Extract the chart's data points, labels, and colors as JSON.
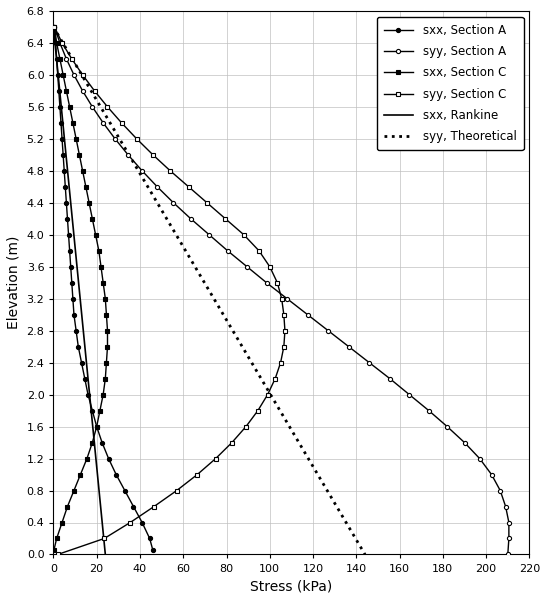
{
  "title": "",
  "xlabel": "Stress (kPa)",
  "ylabel": "Elevation (m)",
  "xlim": [
    0,
    220
  ],
  "ylim": [
    0,
    6.8
  ],
  "xticks": [
    0,
    20,
    40,
    60,
    80,
    100,
    120,
    140,
    160,
    180,
    200,
    220
  ],
  "yticks": [
    0,
    0.4,
    0.8,
    1.2,
    1.6,
    2.0,
    2.4,
    2.8,
    3.2,
    3.6,
    4.0,
    4.4,
    4.8,
    5.2,
    5.6,
    6.0,
    6.4,
    6.8
  ],
  "sxx_rankine": {
    "x": [
      0,
      24
    ],
    "y": [
      6.6,
      0
    ],
    "color": "#000000",
    "linestyle": "-",
    "linewidth": 1.2,
    "label": "sxx, Rankine"
  },
  "syy_theoretical": {
    "x": [
      0,
      144
    ],
    "y": [
      6.6,
      0
    ],
    "color": "#000000",
    "linestyle": ":",
    "linewidth": 2.0,
    "label": "syy, Theoretical"
  },
  "sxx_secA": {
    "elevation": [
      6.6,
      6.4,
      6.2,
      6.0,
      5.8,
      5.6,
      5.4,
      5.2,
      5.0,
      4.8,
      4.6,
      4.4,
      4.2,
      4.0,
      3.8,
      3.6,
      3.4,
      3.2,
      3.0,
      2.8,
      2.6,
      2.4,
      2.2,
      2.0,
      1.8,
      1.6,
      1.4,
      1.2,
      1.0,
      0.8,
      0.6,
      0.4,
      0.2,
      0.05
    ],
    "stress": [
      0.5,
      1.0,
      1.5,
      2.0,
      2.5,
      3.0,
      3.5,
      4.0,
      4.5,
      5.0,
      5.5,
      6.0,
      6.5,
      7.0,
      7.5,
      8.0,
      8.5,
      9.0,
      9.5,
      10.5,
      11.5,
      13.0,
      14.5,
      16.0,
      18.0,
      20.0,
      22.5,
      25.5,
      29.0,
      33.0,
      37.0,
      41.0,
      44.5,
      46.0
    ],
    "color": "#000000",
    "linestyle": "-",
    "linewidth": 1.0,
    "marker": "o",
    "markersize": 3,
    "label": "sxx, Section A"
  },
  "syy_secA": {
    "elevation": [
      6.6,
      6.4,
      6.2,
      6.0,
      5.8,
      5.6,
      5.4,
      5.2,
      5.0,
      4.8,
      4.6,
      4.4,
      4.2,
      4.0,
      3.8,
      3.6,
      3.4,
      3.2,
      3.0,
      2.8,
      2.6,
      2.4,
      2.2,
      2.0,
      1.8,
      1.6,
      1.4,
      1.2,
      1.0,
      0.8,
      0.6,
      0.4,
      0.2,
      0.0
    ],
    "stress": [
      0.5,
      3.0,
      6.0,
      9.5,
      13.5,
      18.0,
      23.0,
      28.5,
      34.5,
      41.0,
      48.0,
      55.5,
      63.5,
      72.0,
      80.5,
      89.5,
      98.5,
      108.0,
      117.5,
      127.0,
      136.5,
      146.0,
      155.5,
      164.5,
      173.5,
      182.0,
      190.0,
      197.0,
      202.5,
      206.5,
      209.0,
      210.5,
      210.5,
      210.0
    ],
    "color": "#000000",
    "linestyle": "-",
    "linewidth": 1.0,
    "marker": "o",
    "markersize": 3,
    "label": "syy, Section A"
  },
  "sxx_secC": {
    "elevation": [
      6.6,
      6.4,
      6.2,
      6.0,
      5.8,
      5.6,
      5.4,
      5.2,
      5.0,
      4.8,
      4.6,
      4.4,
      4.2,
      4.0,
      3.8,
      3.6,
      3.4,
      3.2,
      3.0,
      2.8,
      2.6,
      2.4,
      2.2,
      2.0,
      1.8,
      1.6,
      1.4,
      1.2,
      1.0,
      0.8,
      0.6,
      0.4,
      0.2,
      0.05
    ],
    "stress": [
      0.5,
      1.5,
      3.0,
      4.5,
      6.0,
      7.5,
      9.0,
      10.5,
      12.0,
      13.5,
      15.0,
      16.5,
      18.0,
      19.5,
      21.0,
      22.0,
      23.0,
      24.0,
      24.5,
      25.0,
      25.0,
      24.5,
      24.0,
      23.0,
      21.5,
      20.0,
      18.0,
      15.5,
      12.5,
      9.5,
      6.5,
      4.0,
      1.5,
      0.2
    ],
    "color": "#000000",
    "linestyle": "-",
    "linewidth": 1.0,
    "marker": "s",
    "markersize": 3,
    "label": "sxx, Section C"
  },
  "syy_secC": {
    "elevation": [
      6.6,
      6.4,
      6.2,
      6.0,
      5.8,
      5.6,
      5.4,
      5.2,
      5.0,
      4.8,
      4.6,
      4.4,
      4.2,
      4.0,
      3.8,
      3.6,
      3.4,
      3.2,
      3.0,
      2.8,
      2.6,
      2.4,
      2.2,
      2.0,
      1.8,
      1.6,
      1.4,
      1.2,
      1.0,
      0.8,
      0.6,
      0.4,
      0.2,
      0.0
    ],
    "stress": [
      0.5,
      4.0,
      8.5,
      13.5,
      19.0,
      25.0,
      31.5,
      38.5,
      46.0,
      54.0,
      62.5,
      71.0,
      79.5,
      88.0,
      95.0,
      100.0,
      103.5,
      105.5,
      106.5,
      107.0,
      106.5,
      105.0,
      102.5,
      99.0,
      94.5,
      89.0,
      82.5,
      75.0,
      66.5,
      57.0,
      46.5,
      35.5,
      23.5,
      2.0
    ],
    "color": "#000000",
    "linestyle": "-",
    "linewidth": 1.0,
    "marker": "s",
    "markersize": 3,
    "label": "syy, Section C"
  },
  "legend_fontsize": 8.5,
  "axis_fontsize": 10,
  "tick_fontsize": 8,
  "figsize": [
    5.47,
    6.0
  ],
  "dpi": 100
}
